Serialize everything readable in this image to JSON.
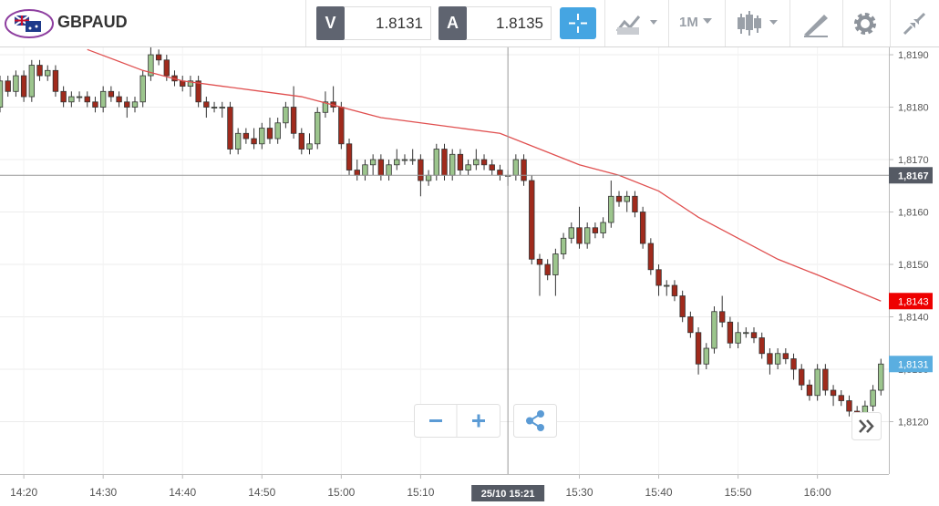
{
  "toolbar": {
    "symbol": "GBPAUD",
    "bid": {
      "label": "V",
      "price": "1.8131"
    },
    "ask": {
      "label": "A",
      "price": "1.8135"
    },
    "timeframe": "1M"
  },
  "chart_data": {
    "type": "candlestick",
    "up_color": "#9cc58d",
    "down_color": "#a02a1c",
    "x": [
      "14:17",
      "14:18",
      "14:19",
      "14:20",
      "14:21",
      "14:22",
      "14:23",
      "14:24",
      "14:25",
      "14:26",
      "14:27",
      "14:28",
      "14:29",
      "14:30",
      "14:31",
      "14:32",
      "14:33",
      "14:34",
      "14:35",
      "14:36",
      "14:37",
      "14:38",
      "14:39",
      "14:40",
      "14:41",
      "14:42",
      "14:43",
      "14:44",
      "14:45",
      "14:46",
      "14:47",
      "14:48",
      "14:49",
      "14:50",
      "14:51",
      "14:52",
      "14:53",
      "14:54",
      "14:55",
      "14:56",
      "14:57",
      "14:58",
      "14:59",
      "15:00",
      "15:01",
      "15:02",
      "15:03",
      "15:04",
      "15:05",
      "15:06",
      "15:07",
      "15:08",
      "15:09",
      "15:10",
      "15:11",
      "15:12",
      "15:13",
      "15:14",
      "15:15",
      "15:16",
      "15:17",
      "15:18",
      "15:19",
      "15:20",
      "15:21",
      "15:22",
      "15:23",
      "15:24",
      "15:25",
      "15:26",
      "15:27",
      "15:28",
      "15:29",
      "15:30",
      "15:31",
      "15:32",
      "15:33",
      "15:34",
      "15:35",
      "15:36",
      "15:37",
      "15:38",
      "15:39",
      "15:40",
      "15:41",
      "15:42",
      "15:43",
      "15:44",
      "15:45",
      "15:46",
      "15:47",
      "15:48",
      "15:49",
      "15:50",
      "15:51",
      "15:52",
      "15:53",
      "15:54",
      "15:55",
      "15:56",
      "15:57",
      "15:58",
      "15:59",
      "16:00",
      "16:01",
      "16:02",
      "16:03",
      "16:04",
      "16:05",
      "16:06",
      "16:07",
      "16:08"
    ],
    "open": [
      1.818,
      1.8185,
      1.8183,
      1.8186,
      1.8182,
      1.8188,
      1.8186,
      1.8187,
      1.8183,
      1.8181,
      1.8182,
      1.8182,
      1.8181,
      1.818,
      1.8183,
      1.8182,
      1.8181,
      1.818,
      1.8181,
      1.8186,
      1.819,
      1.8189,
      1.8186,
      1.8185,
      1.8184,
      1.8185,
      1.8181,
      1.818,
      1.818,
      1.818,
      1.8172,
      1.8175,
      1.8174,
      1.8173,
      1.8176,
      1.8174,
      1.8177,
      1.818,
      1.8175,
      1.8172,
      1.8173,
      1.8179,
      1.8181,
      1.818,
      1.8173,
      1.8168,
      1.8167,
      1.8169,
      1.817,
      1.8167,
      1.8169,
      1.817,
      1.817,
      1.817,
      1.8166,
      1.8167,
      1.8172,
      1.8167,
      1.8171,
      1.8168,
      1.8169,
      1.817,
      1.8169,
      1.8168,
      1.8167,
      1.8167,
      1.817,
      1.8166,
      1.8151,
      1.815,
      1.8148,
      1.8152,
      1.8155,
      1.8157,
      1.8154,
      1.8157,
      1.8156,
      1.8158,
      1.8163,
      1.8162,
      1.8163,
      1.816,
      1.8154,
      1.8149,
      1.8146,
      1.8146,
      1.8144,
      1.814,
      1.8137,
      1.8131,
      1.8134,
      1.8141,
      1.8139,
      1.8135,
      1.8137,
      1.8137,
      1.8136,
      1.8133,
      1.8131,
      1.8133,
      1.8132,
      1.813,
      1.8127,
      1.8125,
      1.813,
      1.8126,
      1.8125,
      1.8124,
      1.8122,
      1.812,
      1.8123,
      1.8126
    ],
    "high": [
      1.8186,
      1.8186,
      1.8187,
      1.8187,
      1.8189,
      1.8189,
      1.8188,
      1.8188,
      1.8184,
      1.8183,
      1.8183,
      1.8183,
      1.8182,
      1.8184,
      1.8184,
      1.8183,
      1.8182,
      1.8182,
      1.8187,
      1.8192,
      1.8191,
      1.819,
      1.8187,
      1.8186,
      1.8186,
      1.8186,
      1.8182,
      1.8181,
      1.8181,
      1.8181,
      1.8176,
      1.8176,
      1.8176,
      1.8177,
      1.8178,
      1.8178,
      1.8181,
      1.8184,
      1.8176,
      1.8175,
      1.818,
      1.8183,
      1.8184,
      1.8181,
      1.8174,
      1.817,
      1.817,
      1.8171,
      1.8171,
      1.817,
      1.8172,
      1.8171,
      1.8172,
      1.8171,
      1.8168,
      1.8173,
      1.8173,
      1.8172,
      1.8172,
      1.817,
      1.8172,
      1.8171,
      1.817,
      1.8169,
      1.8168,
      1.8171,
      1.8171,
      1.8167,
      1.8152,
      1.8151,
      1.8153,
      1.8156,
      1.8158,
      1.8161,
      1.8158,
      1.8158,
      1.8159,
      1.8166,
      1.8164,
      1.8164,
      1.8164,
      1.8161,
      1.8155,
      1.815,
      1.8147,
      1.8147,
      1.8145,
      1.8141,
      1.8138,
      1.8135,
      1.8142,
      1.8144,
      1.814,
      1.8139,
      1.8138,
      1.8138,
      1.8137,
      1.8134,
      1.8134,
      1.8134,
      1.8133,
      1.8131,
      1.8128,
      1.8131,
      1.8131,
      1.8127,
      1.8126,
      1.8125,
      1.8123,
      1.8124,
      1.8127,
      1.8132
    ],
    "low": [
      1.8179,
      1.8182,
      1.8182,
      1.8181,
      1.8181,
      1.8185,
      1.8185,
      1.8182,
      1.818,
      1.818,
      1.8181,
      1.818,
      1.8179,
      1.8179,
      1.8181,
      1.818,
      1.8178,
      1.8179,
      1.818,
      1.8185,
      1.8188,
      1.8185,
      1.8184,
      1.8183,
      1.8182,
      1.818,
      1.8178,
      1.8179,
      1.8178,
      1.8171,
      1.8171,
      1.8173,
      1.8172,
      1.8172,
      1.8173,
      1.8173,
      1.8176,
      1.8174,
      1.8171,
      1.8171,
      1.8172,
      1.8178,
      1.8179,
      1.8172,
      1.8167,
      1.8166,
      1.8166,
      1.8167,
      1.8166,
      1.8166,
      1.8168,
      1.8169,
      1.8169,
      1.8163,
      1.8165,
      1.8166,
      1.8166,
      1.8166,
      1.8167,
      1.8167,
      1.8168,
      1.8168,
      1.8167,
      1.8166,
      1.8165,
      1.8166,
      1.8165,
      1.815,
      1.8144,
      1.8147,
      1.8144,
      1.8151,
      1.8154,
      1.8153,
      1.8153,
      1.8155,
      1.8155,
      1.8157,
      1.8161,
      1.816,
      1.8159,
      1.8153,
      1.8148,
      1.8144,
      1.8144,
      1.8143,
      1.8139,
      1.8136,
      1.8129,
      1.813,
      1.8133,
      1.8138,
      1.8134,
      1.8134,
      1.8136,
      1.8135,
      1.8132,
      1.8129,
      1.813,
      1.8131,
      1.8128,
      1.8126,
      1.8124,
      1.8124,
      1.8125,
      1.8123,
      1.8123,
      1.8121,
      1.8118,
      1.8119,
      1.8122,
      1.8125
    ],
    "close": [
      1.8185,
      1.8183,
      1.8186,
      1.8182,
      1.8188,
      1.8186,
      1.8187,
      1.8183,
      1.8181,
      1.8182,
      1.8182,
      1.8181,
      1.818,
      1.8183,
      1.8182,
      1.8181,
      1.818,
      1.8181,
      1.8186,
      1.819,
      1.8189,
      1.8186,
      1.8185,
      1.8184,
      1.8185,
      1.8181,
      1.818,
      1.818,
      1.818,
      1.8172,
      1.8175,
      1.8174,
      1.8173,
      1.8176,
      1.8174,
      1.8177,
      1.818,
      1.8175,
      1.8172,
      1.8173,
      1.8179,
      1.8181,
      1.818,
      1.8173,
      1.8168,
      1.8167,
      1.8169,
      1.817,
      1.8167,
      1.8169,
      1.817,
      1.817,
      1.817,
      1.8166,
      1.8167,
      1.8172,
      1.8167,
      1.8171,
      1.8168,
      1.8169,
      1.817,
      1.8169,
      1.8168,
      1.8167,
      1.8167,
      1.817,
      1.8166,
      1.8151,
      1.815,
      1.8148,
      1.8152,
      1.8155,
      1.8157,
      1.8154,
      1.8157,
      1.8156,
      1.8158,
      1.8163,
      1.8162,
      1.8163,
      1.816,
      1.8154,
      1.8149,
      1.8146,
      1.8146,
      1.8144,
      1.814,
      1.8137,
      1.8131,
      1.8134,
      1.8141,
      1.8139,
      1.8135,
      1.8137,
      1.8137,
      1.8136,
      1.8133,
      1.8131,
      1.8133,
      1.8132,
      1.813,
      1.8127,
      1.8125,
      1.813,
      1.8126,
      1.8125,
      1.8124,
      1.8122,
      1.812,
      1.8123,
      1.8126,
      1.8131
    ],
    "moving_average": {
      "color": "#e05050",
      "x": [
        "14:28",
        "14:35",
        "14:40",
        "14:45",
        "14:50",
        "14:55",
        "15:00",
        "15:05",
        "15:10",
        "15:15",
        "15:20",
        "15:25",
        "15:30",
        "15:35",
        "15:40",
        "15:45",
        "15:50",
        "15:55",
        "16:00",
        "16:08"
      ],
      "values": [
        1.8191,
        1.8187,
        1.8185,
        1.8184,
        1.8183,
        1.8182,
        1.818,
        1.8178,
        1.8177,
        1.8176,
        1.8175,
        1.8172,
        1.8169,
        1.8167,
        1.8164,
        1.8159,
        1.8155,
        1.8151,
        1.8148,
        1.8143
      ]
    },
    "xlim": [
      "14:17",
      "16:09"
    ],
    "ylim": [
      1.811,
      1.81914
    ],
    "xticks": [
      "14:20",
      "14:30",
      "14:40",
      "14:50",
      "15:00",
      "15:10",
      "15:30",
      "15:40",
      "15:50",
      "16:00"
    ],
    "yticks": [
      {
        "value": 1.812,
        "label": "1,8120"
      },
      {
        "value": 1.813,
        "label": "1,8130"
      },
      {
        "value": 1.814,
        "label": "1,8140"
      },
      {
        "value": 1.815,
        "label": "1,8150"
      },
      {
        "value": 1.816,
        "label": "1,8160"
      },
      {
        "value": 1.817,
        "label": "1,8170"
      },
      {
        "value": 1.818,
        "label": "1,8180"
      },
      {
        "value": 1.819,
        "label": "1,8190"
      }
    ],
    "grid": true,
    "crosshair": {
      "price": {
        "value": 1.8167,
        "label": "1,8167"
      },
      "time": {
        "value": "15:21",
        "label": "25/10 15:21"
      }
    },
    "price_markers": [
      {
        "value": 1.8143,
        "label": "1,8143",
        "color": "#ee0000"
      },
      {
        "value": 1.8131,
        "label": "1,8131",
        "color": "#5aaee0"
      }
    ]
  }
}
